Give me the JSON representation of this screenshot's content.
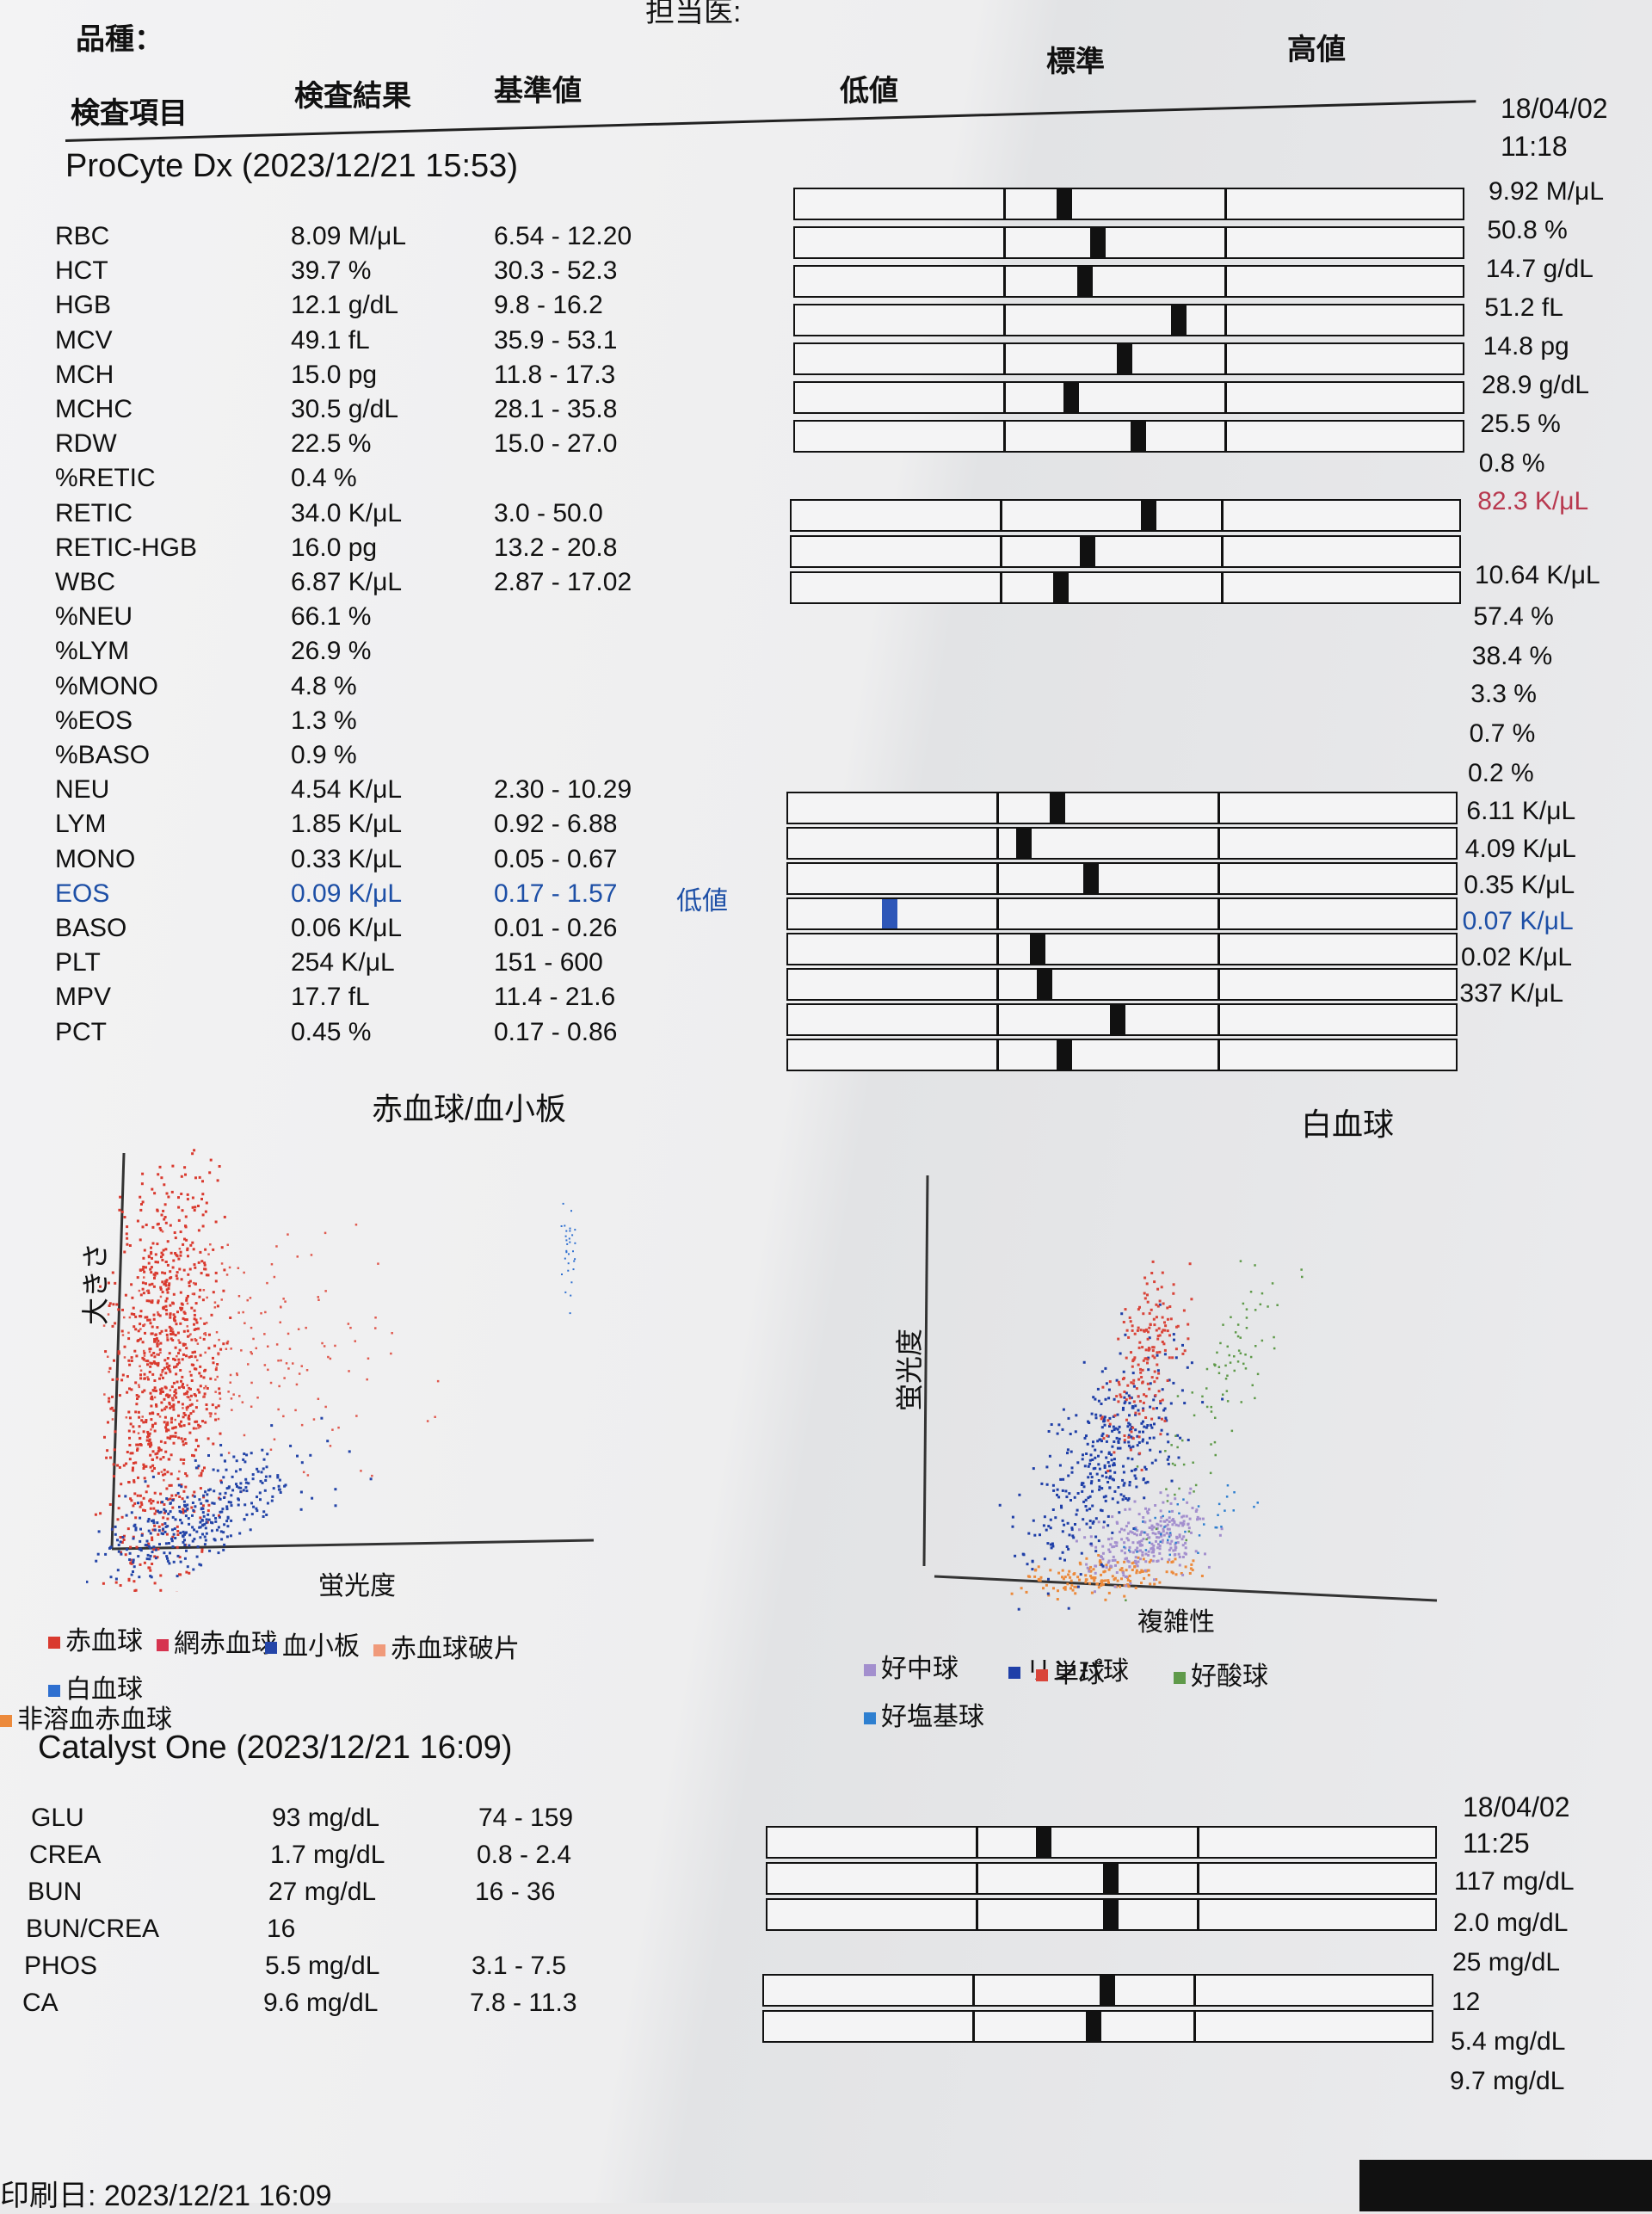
{
  "header": {
    "breed_label": "品種：",
    "doctor_label": "担当医:",
    "col_item": "検査項目",
    "col_result": "検査結果",
    "col_ref": "基準値",
    "col_low": "低値",
    "col_std": "標準",
    "col_high": "高値"
  },
  "procyte": {
    "title": "ProCyte Dx (2023/12/21 15:53)",
    "prev_date": "18/04/02",
    "prev_time": "11:18",
    "rows": [
      {
        "name": "RBC",
        "result": "8.09 M/μL",
        "ref": "6.54 - 12.20",
        "flag": "",
        "prev": "9.92 M/μL"
      },
      {
        "name": "HCT",
        "result": "39.7 %",
        "ref": "30.3 - 52.3",
        "flag": "",
        "prev": "50.8 %"
      },
      {
        "name": "HGB",
        "result": "12.1 g/dL",
        "ref": "9.8 - 16.2",
        "flag": "",
        "prev": "14.7 g/dL"
      },
      {
        "name": "MCV",
        "result": "49.1 fL",
        "ref": "35.9 - 53.1",
        "flag": "",
        "prev": "51.2 fL"
      },
      {
        "name": "MCH",
        "result": "15.0 pg",
        "ref": "11.8 - 17.3",
        "flag": "",
        "prev": "14.8 pg"
      },
      {
        "name": "MCHC",
        "result": "30.5 g/dL",
        "ref": "28.1 - 35.8",
        "flag": "",
        "prev": "28.9 g/dL"
      },
      {
        "name": "RDW",
        "result": "22.5 %",
        "ref": "15.0 - 27.0",
        "flag": "",
        "prev": "25.5 %"
      },
      {
        "name": "%RETIC",
        "result": "0.4 %",
        "ref": "",
        "flag": "",
        "prev": "0.8 %"
      },
      {
        "name": "RETIC",
        "result": "34.0 K/μL",
        "ref": "3.0 - 50.0",
        "flag": "",
        "prev": "82.3 K/μL"
      },
      {
        "name": "RETIC-HGB",
        "result": "16.0 pg",
        "ref": "13.2 - 20.8",
        "flag": "",
        "prev": ""
      },
      {
        "name": "WBC",
        "result": "6.87 K/μL",
        "ref": "2.87 - 17.02",
        "flag": "",
        "prev": "10.64 K/μL"
      },
      {
        "name": "%NEU",
        "result": "66.1 %",
        "ref": "",
        "flag": "",
        "prev": "57.4 %"
      },
      {
        "name": "%LYM",
        "result": "26.9 %",
        "ref": "",
        "flag": "",
        "prev": "38.4 %"
      },
      {
        "name": "%MONO",
        "result": "4.8 %",
        "ref": "",
        "flag": "",
        "prev": "3.3 %"
      },
      {
        "name": "%EOS",
        "result": "1.3 %",
        "ref": "",
        "flag": "",
        "prev": "0.7 %"
      },
      {
        "name": "%BASO",
        "result": "0.9 %",
        "ref": "",
        "flag": "",
        "prev": "0.2 %"
      },
      {
        "name": "NEU",
        "result": "4.54 K/μL",
        "ref": "2.30 - 10.29",
        "flag": "",
        "prev": "6.11 K/μL"
      },
      {
        "name": "LYM",
        "result": "1.85 K/μL",
        "ref": "0.92 - 6.88",
        "flag": "",
        "prev": "4.09 K/μL"
      },
      {
        "name": "MONO",
        "result": "0.33 K/μL",
        "ref": "0.05 - 0.67",
        "flag": "",
        "prev": "0.35 K/μL"
      },
      {
        "name": "EOS",
        "result": "0.09 K/μL",
        "ref": "0.17 - 1.57",
        "flag": "低値",
        "prev": "0.07 K/μL"
      },
      {
        "name": "BASO",
        "result": "0.06 K/μL",
        "ref": "0.01 - 0.26",
        "flag": "",
        "prev": "0.02 K/μL"
      },
      {
        "name": "PLT",
        "result": "254 K/μL",
        "ref": "151 - 600",
        "flag": "",
        "prev": "337 K/μL"
      },
      {
        "name": "MPV",
        "result": "17.7 fL",
        "ref": "11.4 - 21.6",
        "flag": "",
        "prev": ""
      },
      {
        "name": "PCT",
        "result": "0.45 %",
        "ref": "0.17 - 0.86",
        "flag": "",
        "prev": ""
      }
    ],
    "bar_group1": [
      0.39,
      0.44,
      0.42,
      0.56,
      0.48,
      0.4,
      0.5
    ],
    "bar_group2": [
      0.52,
      0.43,
      0.39
    ],
    "bar_group3": [
      0.39,
      0.34,
      0.44,
      0.14,
      0.36,
      0.37,
      0.48,
      0.4
    ],
    "bar_group3_low_index": 3
  },
  "rbc_plot": {
    "title": "赤血球/血小板",
    "ylabel": "大きさ",
    "xlabel": "蛍光度",
    "legend": [
      {
        "label": "赤血球",
        "color": "#d93a2f"
      },
      {
        "label": "網赤血球",
        "color": "#d6334f"
      },
      {
        "label": "血小板",
        "color": "#2445a8"
      },
      {
        "label": "赤血球破片",
        "color": "#f09a7a"
      },
      {
        "label": "白血球",
        "color": "#2e6fd0"
      }
    ]
  },
  "wbc_plot": {
    "title": "白血球",
    "ylabel": "蛍光度",
    "xlabel": "複雑性",
    "legend": [
      {
        "label": "好中球",
        "color": "#a38fce"
      },
      {
        "label": "リンパ球",
        "color": "#1f3fa8"
      },
      {
        "label": "単球",
        "color": "#d9453a"
      },
      {
        "label": "好酸球",
        "color": "#5f9a4a"
      },
      {
        "label": "好塩基球",
        "color": "#2e7fd0"
      },
      {
        "label": "非溶血赤血球",
        "color": "#ec8a3c"
      }
    ]
  },
  "catalyst": {
    "title": "Catalyst One (2023/12/21 16:09)",
    "prev_date": "18/04/02",
    "prev_time": "11:25",
    "rows": [
      {
        "name": "GLU",
        "result": "93 mg/dL",
        "ref": "74 - 159",
        "prev": "117 mg/dL"
      },
      {
        "name": "CREA",
        "result": "1.7 mg/dL",
        "ref": "0.8 - 2.4",
        "prev": "2.0 mg/dL"
      },
      {
        "name": "BUN",
        "result": "27 mg/dL",
        "ref": "16 - 36",
        "prev": "25 mg/dL"
      },
      {
        "name": "BUN/CREA",
        "result": "16",
        "ref": "",
        "prev": "12"
      },
      {
        "name": "PHOS",
        "result": "5.5 mg/dL",
        "ref": "3.1 - 7.5",
        "prev": "5.4 mg/dL"
      },
      {
        "name": "CA",
        "result": "9.6 mg/dL",
        "ref": "7.8 - 11.3",
        "prev": "9.7 mg/dL"
      }
    ],
    "bar_group1": [
      0.4,
      0.5,
      0.5
    ],
    "bar_group2": [
      0.5,
      0.48
    ]
  },
  "footer": {
    "print_date": "印刷日: 2023/12/21 16:09"
  }
}
